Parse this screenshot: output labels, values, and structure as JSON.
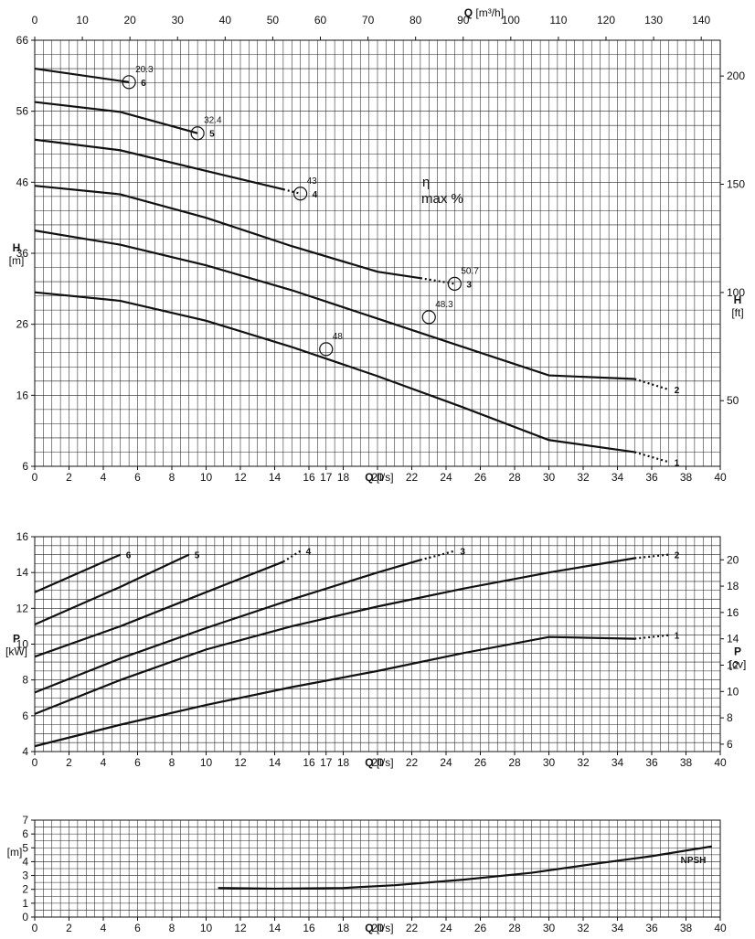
{
  "chart_data": [
    {
      "type": "line",
      "title": "",
      "xlabel": "Q [l/s]",
      "x_ticks": [
        0,
        2,
        4,
        6,
        8,
        10,
        12,
        14,
        16,
        17,
        18,
        20,
        22,
        24,
        26,
        28,
        30,
        32,
        34,
        36,
        38,
        40
      ],
      "x2label": "Q [m³/h]",
      "x2_ticks": [
        0,
        10,
        20,
        30,
        40,
        50,
        60,
        70,
        80,
        90,
        100,
        110,
        120,
        130,
        140
      ],
      "ylabel": "H",
      "yunit": "[m]",
      "y_ticks": [
        6,
        16,
        26,
        36,
        46,
        56,
        66
      ],
      "xlim": [
        0,
        40
      ],
      "ylim": [
        6,
        66
      ],
      "y2label": "H",
      "y2unit": "[ft]",
      "y2_ticks": [
        50,
        100,
        150,
        200
      ],
      "grid": true,
      "efficiency_label": "η",
      "efficiency_unit": "max %",
      "series": [
        {
          "name": "1",
          "x": [
            0,
            5,
            10,
            15,
            20,
            25,
            30,
            35
          ],
          "values": [
            30.5,
            29.3,
            26.5,
            22.8,
            18.7,
            14.3,
            9.7,
            8.0
          ],
          "dotted_x": [
            35,
            37
          ],
          "dotted_values": [
            8.0,
            6.6
          ],
          "bep": {
            "x": 17,
            "y": 22.5,
            "eta": "48"
          }
        },
        {
          "name": "2",
          "x": [
            0,
            5,
            10,
            15,
            20,
            25,
            30,
            35
          ],
          "values": [
            39.2,
            37.2,
            34.3,
            30.8,
            26.8,
            22.8,
            18.8,
            18.3
          ],
          "dotted_x": [
            35,
            37
          ],
          "dotted_values": [
            18.3,
            16.8
          ],
          "bep": {
            "x": 23,
            "y": 27.0,
            "eta": "48.3"
          }
        },
        {
          "name": "3",
          "x": [
            0,
            5,
            10,
            15,
            20,
            22.5
          ],
          "values": [
            45.5,
            44.3,
            41.0,
            37.0,
            33.4,
            32.5
          ],
          "dotted_x": [
            22.5,
            24.5
          ],
          "dotted_values": [
            32.5,
            31.7
          ],
          "bep": {
            "x": 24.5,
            "y": 31.7,
            "eta": "50.7"
          }
        },
        {
          "name": "4",
          "x": [
            0,
            5,
            10,
            14.5
          ],
          "values": [
            52.0,
            50.5,
            47.6,
            45.0
          ],
          "dotted_x": [
            14.5,
            15.5
          ],
          "dotted_values": [
            45.0,
            44.4
          ],
          "bep": {
            "x": 15.5,
            "y": 44.4,
            "eta": "43"
          }
        },
        {
          "name": "5",
          "x": [
            0,
            5,
            9.5
          ],
          "values": [
            57.3,
            55.9,
            52.9
          ],
          "bep": {
            "x": 9.5,
            "y": 52.9,
            "eta": "32.4"
          }
        },
        {
          "name": "6",
          "x": [
            0,
            5.5
          ],
          "values": [
            62.0,
            60.1
          ],
          "bep": {
            "x": 5.5,
            "y": 60.1,
            "eta": "20.3"
          }
        }
      ]
    },
    {
      "type": "line",
      "title": "",
      "xlabel": "Q [l/s]",
      "x_ticks": [
        0,
        2,
        4,
        6,
        8,
        10,
        12,
        14,
        16,
        17,
        18,
        20,
        22,
        24,
        26,
        28,
        30,
        32,
        34,
        36,
        38,
        40
      ],
      "ylabel": "P",
      "yunit": "[kW]",
      "y_ticks": [
        4,
        6,
        8,
        10,
        12,
        14,
        16
      ],
      "xlim": [
        0,
        40
      ],
      "ylim": [
        4,
        16
      ],
      "y2label": "P",
      "y2unit": "[cv]",
      "y2_ticks": [
        6,
        8,
        10,
        12,
        14,
        16,
        18,
        20
      ],
      "grid": true,
      "series": [
        {
          "name": "1",
          "x": [
            0,
            5,
            10,
            15,
            20,
            25,
            30,
            35
          ],
          "values": [
            4.3,
            5.5,
            6.6,
            7.6,
            8.5,
            9.5,
            10.4,
            10.3
          ],
          "dotted_x": [
            35,
            37
          ],
          "dotted_values": [
            10.3,
            10.5
          ]
        },
        {
          "name": "2",
          "x": [
            0,
            5,
            10,
            15,
            20,
            25,
            30,
            35
          ],
          "values": [
            6.1,
            8.0,
            9.7,
            11.0,
            12.1,
            13.1,
            14.0,
            14.8
          ],
          "dotted_x": [
            35,
            37
          ],
          "dotted_values": [
            14.8,
            15.0
          ]
        },
        {
          "name": "3",
          "x": [
            0,
            5,
            10,
            15,
            20,
            22.5
          ],
          "values": [
            7.3,
            9.2,
            10.9,
            12.5,
            14.0,
            14.7
          ],
          "dotted_x": [
            22.5,
            24.5
          ],
          "dotted_values": [
            14.7,
            15.2
          ]
        },
        {
          "name": "4",
          "x": [
            0,
            5,
            10,
            14.5
          ],
          "values": [
            9.3,
            11.0,
            12.9,
            14.6
          ],
          "dotted_x": [
            14.5,
            15.5
          ],
          "dotted_values": [
            14.6,
            15.2
          ]
        },
        {
          "name": "5",
          "x": [
            0,
            5,
            9
          ],
          "values": [
            11.1,
            13.2,
            15.0
          ]
        },
        {
          "name": "6",
          "x": [
            0,
            5
          ],
          "values": [
            12.9,
            15.0
          ]
        }
      ]
    },
    {
      "type": "line",
      "title": "",
      "xlabel": "Q [l/s]",
      "x_ticks": [
        0,
        2,
        4,
        6,
        8,
        10,
        12,
        14,
        16,
        18,
        20,
        22,
        24,
        26,
        28,
        30,
        32,
        34,
        36,
        38,
        40
      ],
      "ylabel": "NPSH",
      "yunit": "[m]",
      "y_ticks": [
        0,
        1,
        2,
        3,
        4,
        5,
        6,
        7
      ],
      "xlim": [
        0,
        40
      ],
      "ylim": [
        0,
        7
      ],
      "grid": true,
      "series": [
        {
          "name": "NPSH",
          "x": [
            10.7,
            14,
            18,
            21,
            25,
            29,
            33,
            36,
            39.5
          ],
          "values": [
            2.1,
            2.05,
            2.1,
            2.3,
            2.7,
            3.2,
            3.9,
            4.4,
            5.1
          ]
        }
      ]
    }
  ]
}
